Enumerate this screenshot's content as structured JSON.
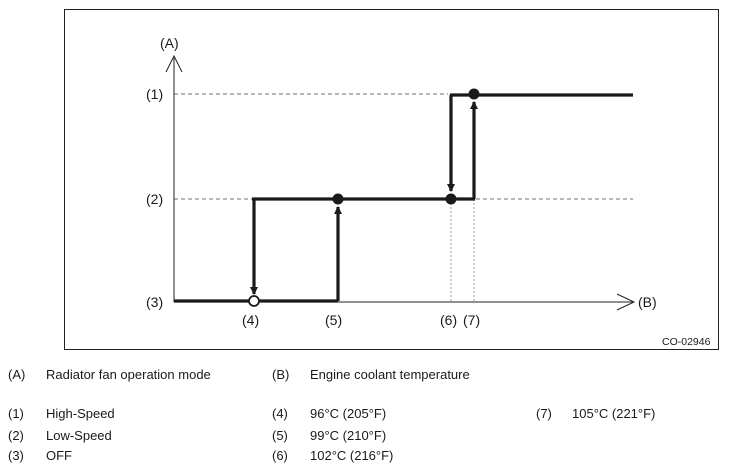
{
  "diagram": {
    "axis_y_key": "(A)",
    "axis_x_key": "(B)",
    "level_labels": [
      "(1)",
      "(2)",
      "(3)"
    ],
    "temp_point_labels": [
      "(4)",
      "(5)",
      "(6)",
      "(7)"
    ],
    "figure_code": "CO-02946"
  },
  "legend": {
    "axes": [
      {
        "key": "(A)",
        "text": "Radiator fan operation mode"
      },
      {
        "key": "(B)",
        "text": "Engine coolant temperature"
      }
    ],
    "modes": [
      {
        "key": "(1)",
        "text": "High-Speed"
      },
      {
        "key": "(2)",
        "text": "Low-Speed"
      },
      {
        "key": "(3)",
        "text": "OFF"
      }
    ],
    "temps": [
      {
        "key": "(4)",
        "text": "96°C (205°F)"
      },
      {
        "key": "(5)",
        "text": "99°C (210°F)"
      },
      {
        "key": "(6)",
        "text": "102°C (216°F)"
      },
      {
        "key": "(7)",
        "text": "105°C (221°F)"
      }
    ]
  }
}
